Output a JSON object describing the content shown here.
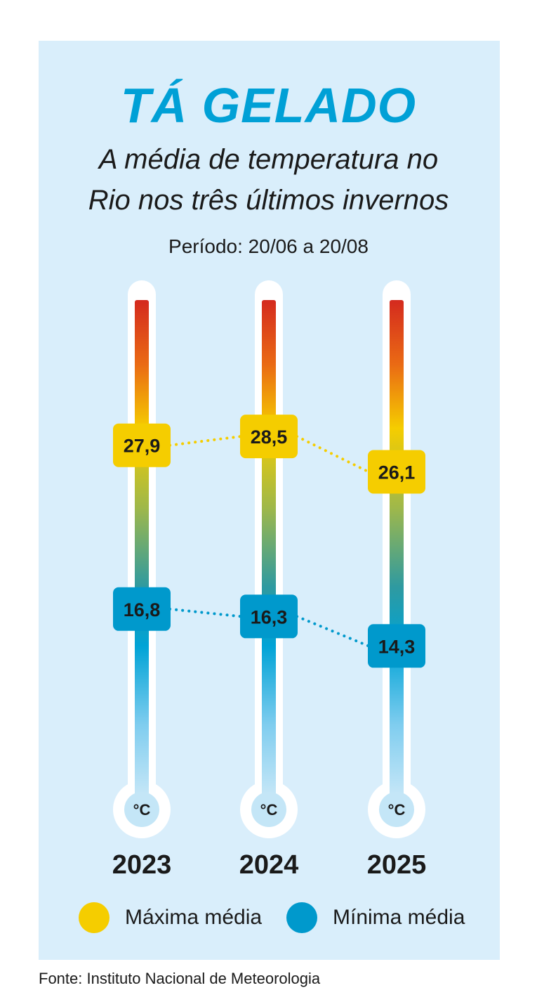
{
  "title": "TÁ GELADO",
  "subtitle_line1": "A média de temperatura no",
  "subtitle_line2": "Rio nos três últimos invernos",
  "period": "Período: 20/06 a 20/08",
  "unit": "°C",
  "source": "Fonte: Instituto Nacional de Meteorologia",
  "colors": {
    "background": "#d9eefb",
    "title": "#00a0d6",
    "max": "#f5cd00",
    "min": "#0099cc"
  },
  "chart_data": {
    "type": "line",
    "categories": [
      "2023",
      "2024",
      "2025"
    ],
    "series": [
      {
        "name": "Máxima média",
        "values": [
          27.9,
          28.5,
          26.1
        ],
        "labels": [
          "27,9",
          "28,5",
          "26,1"
        ]
      },
      {
        "name": "Mínima média",
        "values": [
          16.8,
          16.3,
          14.3
        ],
        "labels": [
          "16,8",
          "16,3",
          "14,3"
        ]
      }
    ]
  }
}
